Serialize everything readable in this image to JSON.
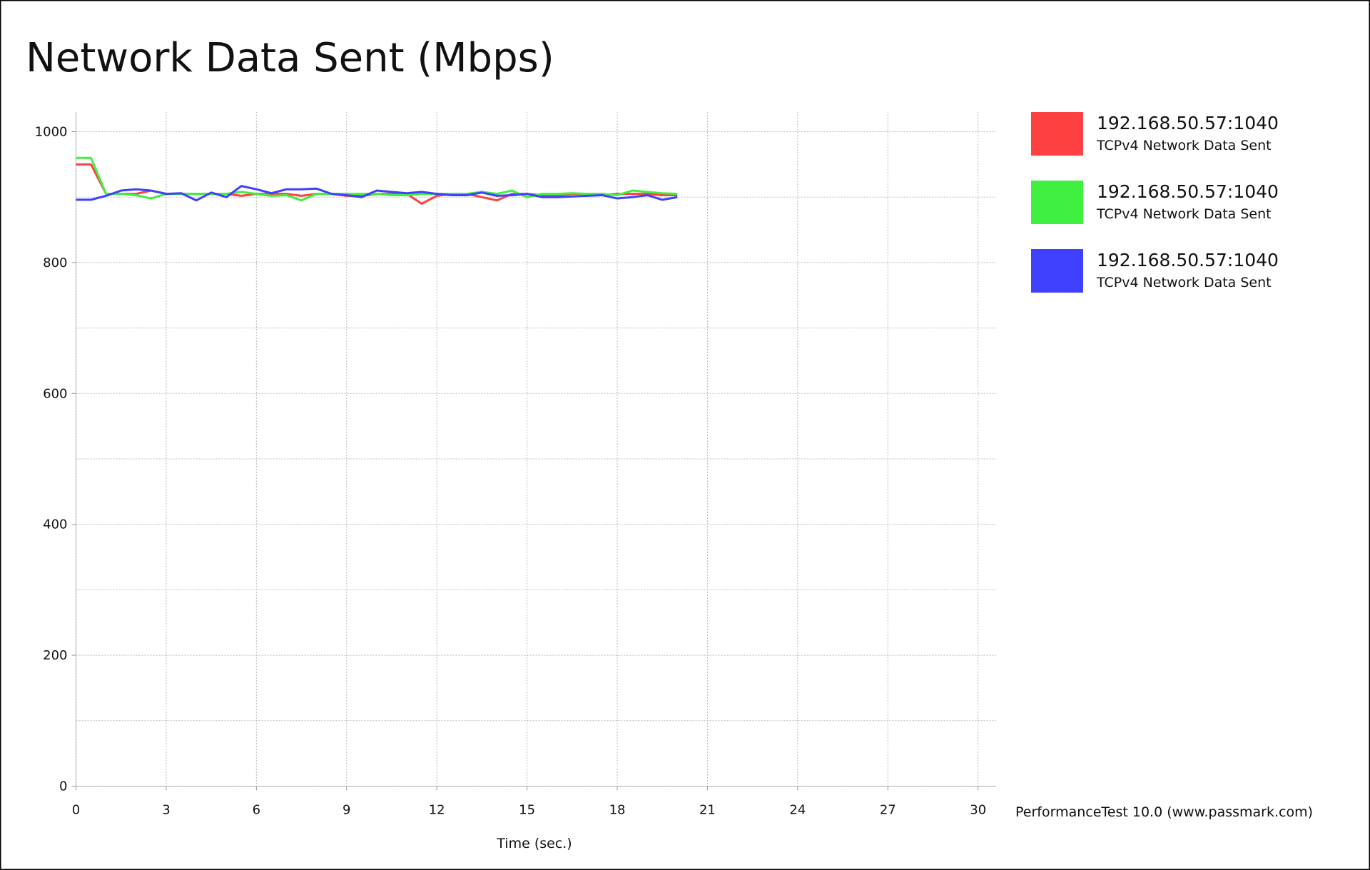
{
  "chart_data": {
    "type": "line",
    "title": "Network Data Sent (Mbps)",
    "x_label": "Time (sec.)",
    "footer": "PerformanceTest 10.0 (www.passmark.com)",
    "x": [
      0,
      0.5,
      1,
      1.5,
      2,
      2.5,
      3,
      3.5,
      4,
      4.5,
      5,
      5.5,
      6,
      6.5,
      7,
      7.5,
      8,
      8.5,
      9,
      9.5,
      10,
      10.5,
      11,
      11.5,
      12,
      12.5,
      13,
      13.5,
      14,
      14.5,
      15,
      15.5,
      16,
      16.5,
      17,
      17.5,
      18,
      18.5,
      19,
      19.5,
      20
    ],
    "series": [
      {
        "name": "192.168.50.57:1040",
        "description": "TCPv4 Network Data Sent",
        "color": "#ff4040",
        "values": [
          950,
          950,
          905,
          905,
          905,
          910,
          905,
          905,
          905,
          905,
          905,
          902,
          905,
          905,
          905,
          902,
          905,
          905,
          902,
          902,
          905,
          905,
          905,
          890,
          902,
          905,
          905,
          900,
          895,
          905,
          905,
          903,
          903,
          905,
          905,
          903,
          905,
          905,
          905,
          903,
          903
        ]
      },
      {
        "name": "192.168.50.57:1040",
        "description": "TCPv4 Network Data Sent",
        "color": "#40f040",
        "values": [
          960,
          960,
          905,
          905,
          903,
          898,
          905,
          905,
          905,
          905,
          905,
          908,
          905,
          902,
          903,
          895,
          905,
          905,
          905,
          905,
          905,
          903,
          903,
          905,
          905,
          905,
          905,
          908,
          905,
          910,
          900,
          905,
          905,
          906,
          905,
          905,
          903,
          910,
          908,
          906,
          905
        ]
      },
      {
        "name": "192.168.50.57:1040",
        "description": "TCPv4 Network Data Sent",
        "color": "#4040ff",
        "values": [
          896,
          896,
          902,
          910,
          912,
          910,
          905,
          906,
          895,
          907,
          900,
          917,
          912,
          906,
          912,
          912,
          913,
          905,
          903,
          900,
          910,
          908,
          906,
          908,
          905,
          903,
          903,
          907,
          902,
          903,
          905,
          900,
          900,
          901,
          902,
          903,
          898,
          900,
          903,
          896,
          900
        ]
      }
    ],
    "xlim": [
      0,
      30.6
    ],
    "xticks": [
      0,
      3,
      6,
      9,
      12,
      15,
      18,
      21,
      24,
      27,
      30
    ],
    "ylim": [
      0,
      1030
    ],
    "yticks": [
      0,
      200,
      400,
      600,
      800,
      1000
    ],
    "y_minor_ticks": [
      100,
      300,
      500,
      700,
      900
    ],
    "grid": true
  }
}
